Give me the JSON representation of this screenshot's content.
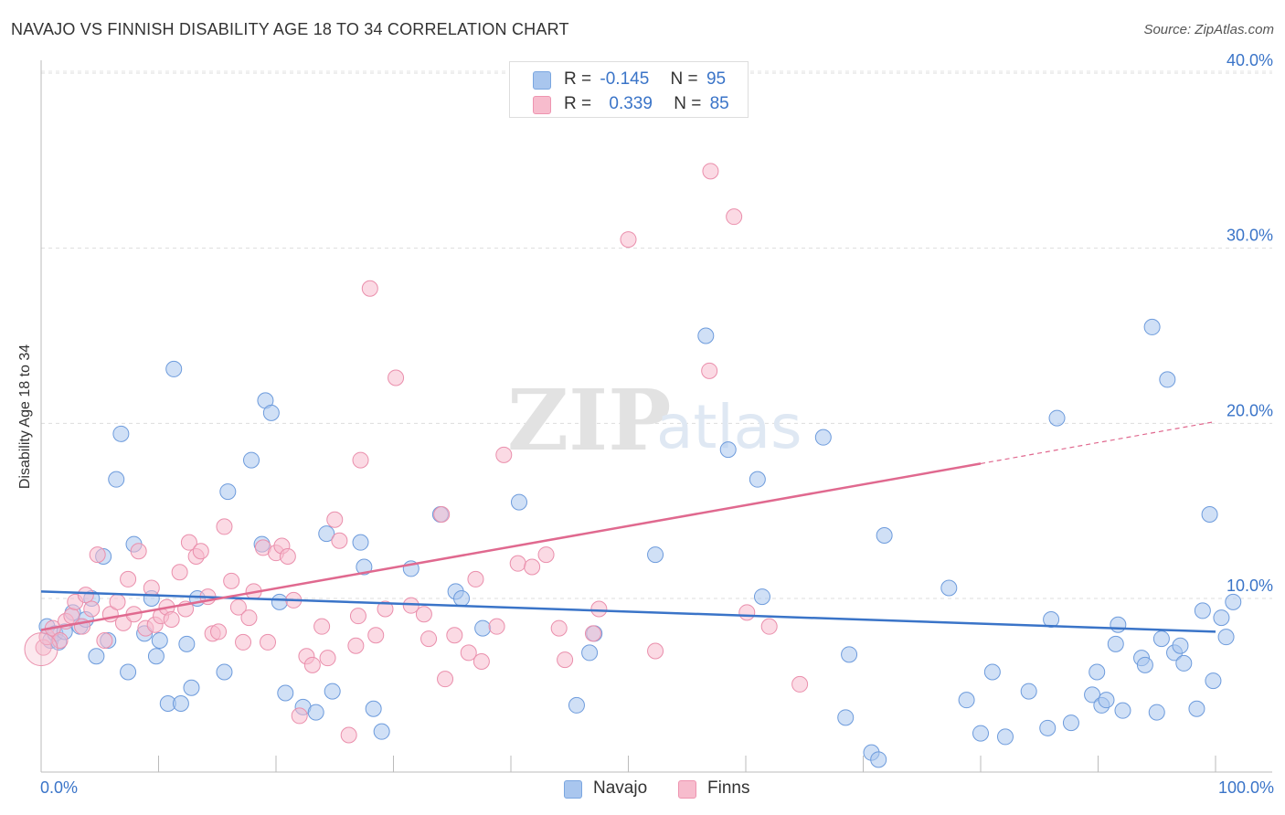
{
  "chart_data": {
    "type": "scatter",
    "title": "NAVAJO VS FINNISH DISABILITY AGE 18 TO 34 CORRELATION CHART",
    "source": "Source: ZipAtlas.com",
    "xlabel": "",
    "ylabel": "Disability Age 18 to 34",
    "xlim": [
      0,
      100
    ],
    "ylim": [
      0,
      42
    ],
    "x_tick_labels": [
      "0.0%",
      "100.0%"
    ],
    "y_ticks": [
      10,
      20,
      30,
      40
    ],
    "y_tick_labels": [
      "10.0%",
      "20.0%",
      "30.0%",
      "40.0%"
    ],
    "grid": true,
    "watermark": "ZIPatlas",
    "legend": [
      {
        "name": "Navajo",
        "r_label": "R =",
        "r": "-0.145",
        "n_label": "N =",
        "n": "95",
        "color": "#a9c6ee",
        "edge": "#7aa6e0"
      },
      {
        "name": "Finns",
        "r_label": "R =",
        "r": "0.339",
        "n_label": "N =",
        "n": "85",
        "color": "#f7bccd",
        "edge": "#ee94b0"
      }
    ],
    "series": [
      {
        "name": "Navajo",
        "color": "#a9c6ee",
        "edge": "#6d9bdc",
        "trend": {
          "x": [
            0,
            100
          ],
          "y": [
            10.4,
            8.1
          ],
          "color": "#3a74c8"
        },
        "points": [
          [
            0.5,
            8.4
          ],
          [
            0.8,
            7.6
          ],
          [
            1.2,
            8.0
          ],
          [
            1.5,
            7.5
          ],
          [
            2.0,
            8.1
          ],
          [
            2.7,
            9.2
          ],
          [
            3.3,
            8.4
          ],
          [
            3.8,
            8.8
          ],
          [
            4.3,
            10.0
          ],
          [
            4.7,
            6.7
          ],
          [
            5.3,
            12.4
          ],
          [
            5.7,
            7.6
          ],
          [
            6.4,
            16.8
          ],
          [
            6.8,
            19.4
          ],
          [
            7.4,
            5.8
          ],
          [
            7.9,
            13.1
          ],
          [
            8.8,
            8.0
          ],
          [
            9.4,
            10.0
          ],
          [
            9.8,
            6.7
          ],
          [
            10.1,
            7.6
          ],
          [
            10.8,
            4.0
          ],
          [
            11.3,
            23.1
          ],
          [
            11.9,
            4.0
          ],
          [
            12.4,
            7.4
          ],
          [
            12.8,
            4.9
          ],
          [
            13.3,
            10.0
          ],
          [
            15.9,
            16.1
          ],
          [
            15.6,
            5.8
          ],
          [
            17.9,
            17.9
          ],
          [
            18.8,
            13.1
          ],
          [
            19.1,
            21.3
          ],
          [
            19.6,
            20.6
          ],
          [
            20.3,
            9.8
          ],
          [
            20.8,
            4.6
          ],
          [
            22.3,
            3.8
          ],
          [
            23.4,
            3.5
          ],
          [
            24.3,
            13.7
          ],
          [
            24.8,
            4.7
          ],
          [
            27.2,
            13.2
          ],
          [
            27.5,
            11.8
          ],
          [
            28.3,
            3.7
          ],
          [
            29.0,
            2.4
          ],
          [
            31.5,
            11.7
          ],
          [
            34.0,
            14.8
          ],
          [
            35.3,
            10.4
          ],
          [
            35.8,
            10.0
          ],
          [
            37.6,
            8.3
          ],
          [
            40.7,
            15.5
          ],
          [
            45.6,
            3.9
          ],
          [
            46.7,
            6.9
          ],
          [
            47.1,
            8.0
          ],
          [
            52.3,
            12.5
          ],
          [
            56.6,
            25.0
          ],
          [
            58.5,
            18.5
          ],
          [
            61.0,
            16.8
          ],
          [
            61.4,
            10.1
          ],
          [
            66.6,
            19.2
          ],
          [
            68.5,
            3.2
          ],
          [
            68.8,
            6.8
          ],
          [
            70.7,
            1.2
          ],
          [
            71.3,
            0.8
          ],
          [
            71.8,
            13.6
          ],
          [
            77.3,
            10.6
          ],
          [
            78.8,
            4.2
          ],
          [
            80.0,
            2.3
          ],
          [
            81.0,
            5.8
          ],
          [
            82.1,
            2.1
          ],
          [
            84.1,
            4.7
          ],
          [
            85.7,
            2.6
          ],
          [
            86.0,
            8.8
          ],
          [
            86.5,
            20.3
          ],
          [
            87.7,
            2.9
          ],
          [
            89.5,
            4.5
          ],
          [
            89.9,
            5.8
          ],
          [
            90.3,
            3.9
          ],
          [
            90.7,
            4.2
          ],
          [
            91.5,
            7.4
          ],
          [
            91.7,
            8.5
          ],
          [
            92.1,
            3.6
          ],
          [
            93.7,
            6.6
          ],
          [
            94.0,
            6.2
          ],
          [
            94.6,
            25.5
          ],
          [
            95.0,
            3.5
          ],
          [
            95.4,
            7.7
          ],
          [
            95.9,
            22.5
          ],
          [
            96.5,
            6.9
          ],
          [
            97.0,
            7.3
          ],
          [
            97.3,
            6.3
          ],
          [
            98.4,
            3.7
          ],
          [
            98.9,
            9.3
          ],
          [
            99.5,
            14.8
          ],
          [
            99.8,
            5.3
          ],
          [
            100.5,
            8.9
          ],
          [
            100.9,
            7.8
          ],
          [
            101.5,
            9.8
          ]
        ]
      },
      {
        "name": "Finns",
        "color": "#f7bccd",
        "edge": "#ea8fac",
        "trend": {
          "x": [
            0,
            80
          ],
          "y": [
            8.2,
            17.7
          ],
          "color": "#e0698f",
          "dashed_x": [
            80,
            100
          ],
          "dashed_y": [
            17.7,
            20.1
          ]
        },
        "points": [
          [
            0.2,
            7.2
          ],
          [
            0.5,
            7.8
          ],
          [
            1.0,
            8.3
          ],
          [
            1.6,
            7.6
          ],
          [
            2.1,
            8.7
          ],
          [
            2.6,
            9.0
          ],
          [
            2.9,
            9.8
          ],
          [
            3.5,
            8.4
          ],
          [
            3.8,
            10.2
          ],
          [
            4.3,
            9.4
          ],
          [
            4.8,
            12.5
          ],
          [
            5.4,
            7.6
          ],
          [
            5.9,
            9.1
          ],
          [
            6.5,
            9.8
          ],
          [
            7.0,
            8.6
          ],
          [
            7.4,
            11.1
          ],
          [
            7.9,
            9.1
          ],
          [
            8.3,
            12.7
          ],
          [
            8.9,
            8.3
          ],
          [
            9.4,
            10.6
          ],
          [
            9.7,
            8.5
          ],
          [
            10.2,
            9.0
          ],
          [
            10.7,
            9.5
          ],
          [
            11.1,
            8.8
          ],
          [
            11.8,
            11.5
          ],
          [
            12.3,
            9.4
          ],
          [
            12.6,
            13.2
          ],
          [
            13.2,
            12.4
          ],
          [
            13.6,
            12.7
          ],
          [
            14.2,
            10.1
          ],
          [
            14.6,
            8.0
          ],
          [
            15.1,
            8.1
          ],
          [
            15.6,
            14.1
          ],
          [
            16.2,
            11.0
          ],
          [
            16.8,
            9.5
          ],
          [
            17.2,
            7.5
          ],
          [
            17.7,
            8.9
          ],
          [
            18.1,
            10.4
          ],
          [
            18.9,
            12.9
          ],
          [
            19.3,
            7.5
          ],
          [
            20.0,
            12.6
          ],
          [
            20.5,
            13.0
          ],
          [
            21.0,
            12.4
          ],
          [
            21.5,
            9.9
          ],
          [
            22.0,
            3.3
          ],
          [
            22.6,
            6.7
          ],
          [
            23.1,
            6.2
          ],
          [
            23.9,
            8.4
          ],
          [
            24.4,
            6.6
          ],
          [
            25.0,
            14.5
          ],
          [
            25.4,
            13.3
          ],
          [
            26.2,
            2.2
          ],
          [
            26.8,
            7.3
          ],
          [
            27.0,
            9.0
          ],
          [
            28.0,
            27.7
          ],
          [
            28.5,
            7.9
          ],
          [
            29.3,
            9.4
          ],
          [
            30.2,
            22.6
          ],
          [
            31.5,
            9.6
          ],
          [
            32.6,
            9.1
          ],
          [
            33.0,
            7.7
          ],
          [
            34.1,
            14.8
          ],
          [
            34.4,
            5.4
          ],
          [
            35.2,
            7.9
          ],
          [
            36.4,
            6.9
          ],
          [
            37.0,
            11.1
          ],
          [
            37.5,
            6.4
          ],
          [
            38.8,
            8.4
          ],
          [
            39.4,
            18.2
          ],
          [
            40.6,
            12.0
          ],
          [
            41.8,
            11.8
          ],
          [
            43.0,
            12.5
          ],
          [
            44.1,
            8.3
          ],
          [
            44.6,
            6.5
          ],
          [
            47.5,
            9.4
          ],
          [
            50.0,
            30.5
          ],
          [
            52.3,
            7.0
          ],
          [
            56.9,
            23.0
          ],
          [
            57.0,
            34.4
          ],
          [
            59.0,
            31.8
          ],
          [
            60.1,
            9.2
          ],
          [
            64.6,
            5.1
          ],
          [
            27.2,
            17.9
          ],
          [
            47.0,
            8.0
          ],
          [
            62.0,
            8.4
          ]
        ]
      }
    ]
  }
}
